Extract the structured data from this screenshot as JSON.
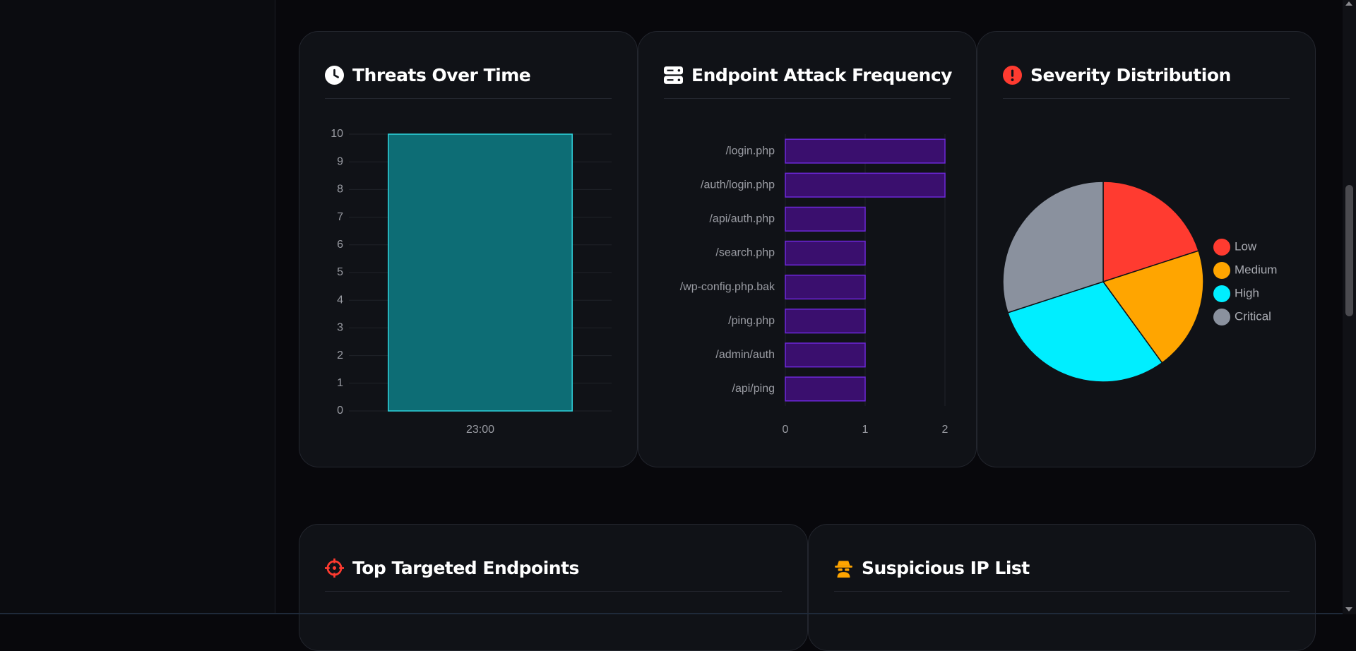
{
  "cards": {
    "threats_over_time": {
      "title": "Threats Over Time",
      "icon": "clock-icon"
    },
    "endpoint_attack_frequency": {
      "title": "Endpoint Attack Frequency",
      "icon": "server-icon"
    },
    "severity_distribution": {
      "title": "Severity Distribution",
      "icon": "alert-circle-icon"
    },
    "top_targeted_endpoints": {
      "title": "Top Targeted Endpoints",
      "icon": "crosshair-icon"
    },
    "suspicious_ip_list": {
      "title": "Suspicious IP List",
      "icon": "spy-icon"
    }
  },
  "colors": {
    "teal_fill": "#0d6d75",
    "teal_border": "#2fd3dc",
    "purple_fill": "#3a0f6e",
    "purple_border": "#6d28d9",
    "low": "#ff3b30",
    "medium": "#ffa500",
    "high": "#00eeff",
    "critical": "#8a919e",
    "icon_red": "#ff3b30",
    "icon_orange": "#ffa500"
  },
  "chart_data": [
    {
      "type": "bar",
      "title": "Threats Over Time",
      "categories": [
        "23:00"
      ],
      "values": [
        10
      ],
      "ylim": [
        0,
        10
      ],
      "yticks": [
        0,
        1,
        2,
        3,
        4,
        5,
        6,
        7,
        8,
        9,
        10
      ],
      "xlabel": "",
      "ylabel": "",
      "grid": true
    },
    {
      "type": "bar",
      "orientation": "horizontal",
      "title": "Endpoint Attack Frequency",
      "categories": [
        "/login.php",
        "/auth/login.php",
        "/api/auth.php",
        "/search.php",
        "/wp-config.php.bak",
        "/ping.php",
        "/admin/auth",
        "/api/ping"
      ],
      "values": [
        2,
        2,
        1,
        1,
        1,
        1,
        1,
        1
      ],
      "xlim": [
        0,
        2
      ],
      "xticks": [
        0,
        1,
        2
      ],
      "grid": true
    },
    {
      "type": "pie",
      "title": "Severity Distribution",
      "labels": [
        "Low",
        "Medium",
        "High",
        "Critical"
      ],
      "values": [
        2,
        2,
        3,
        3
      ],
      "legend": "right"
    }
  ]
}
